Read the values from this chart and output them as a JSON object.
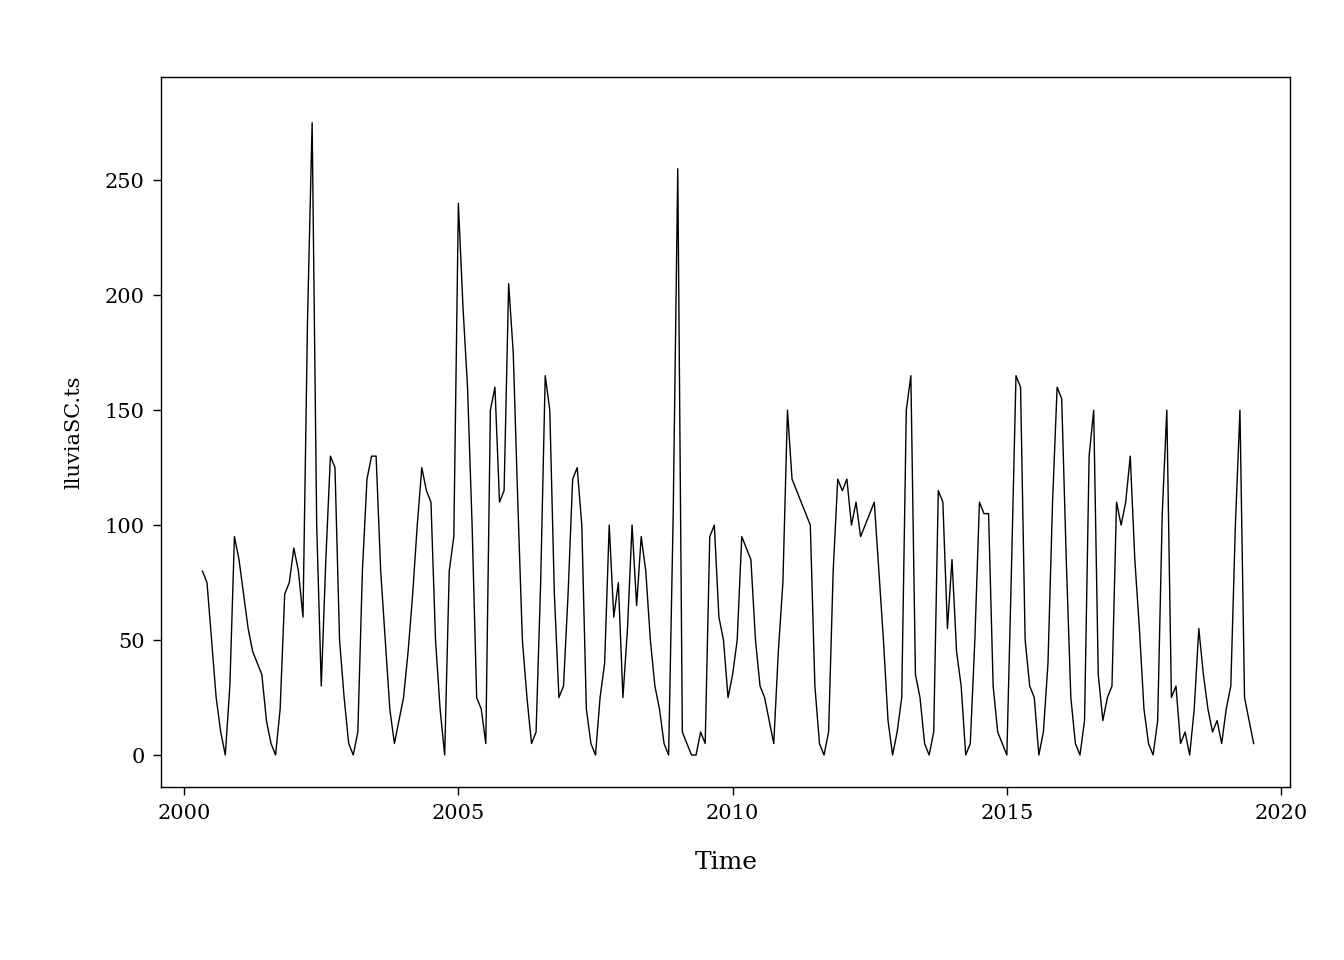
{
  "ylabel": "lluviaSC.ts",
  "xlabel": "Time",
  "line_color": "#000000",
  "line_width": 1.0,
  "background_color": "#ffffff",
  "xlim": [
    1999.583,
    2020.167
  ],
  "ylim": [
    -14,
    295
  ],
  "xticks": [
    2000,
    2005,
    2010,
    2015,
    2020
  ],
  "yticks": [
    0,
    50,
    100,
    150,
    200,
    250
  ],
  "start_year": 2000,
  "start_month": 5,
  "values": [
    80,
    75,
    50,
    25,
    10,
    0,
    30,
    95,
    85,
    70,
    55,
    45,
    40,
    35,
    15,
    5,
    0,
    20,
    70,
    75,
    90,
    80,
    60,
    190,
    275,
    100,
    30,
    85,
    130,
    125,
    50,
    25,
    5,
    0,
    10,
    80,
    120,
    130,
    130,
    80,
    50,
    20,
    5,
    15,
    25,
    45,
    70,
    100,
    125,
    115,
    110,
    50,
    20,
    0,
    80,
    95,
    240,
    195,
    160,
    100,
    25,
    20,
    5,
    150,
    160,
    110,
    115,
    205,
    175,
    110,
    50,
    25,
    5,
    10,
    75,
    165,
    150,
    70,
    25,
    30,
    70,
    120,
    125,
    100,
    20,
    5,
    0,
    25,
    40,
    100,
    60,
    75,
    25,
    55,
    100,
    65,
    95,
    80,
    50,
    30,
    20,
    5,
    0,
    105,
    255,
    10,
    5,
    0,
    0,
    10,
    5,
    95,
    100,
    60,
    50,
    25,
    35,
    50,
    95,
    90,
    85,
    50,
    30,
    25,
    15,
    5,
    45,
    75,
    150,
    120,
    115,
    110,
    105,
    100,
    30,
    5,
    0,
    10,
    80,
    120,
    115,
    120,
    100,
    110,
    95,
    100,
    105,
    110,
    80,
    50,
    15,
    0,
    10,
    25,
    150,
    165,
    35,
    25,
    5,
    0,
    10,
    115,
    110,
    55,
    85,
    45,
    30,
    0,
    5,
    50,
    110,
    105,
    105,
    30,
    10,
    5,
    0,
    80,
    165,
    160,
    50,
    30,
    25,
    0,
    10,
    40,
    110,
    160,
    155,
    85,
    25,
    5,
    0,
    15,
    130,
    150,
    35,
    15,
    25,
    30,
    110,
    100,
    110,
    130,
    85,
    55,
    20,
    5,
    0,
    15,
    105,
    150,
    25,
    30,
    5,
    10,
    0,
    20,
    55,
    35,
    20,
    10,
    15,
    5,
    20,
    30,
    100,
    150,
    25,
    15,
    5
  ]
}
